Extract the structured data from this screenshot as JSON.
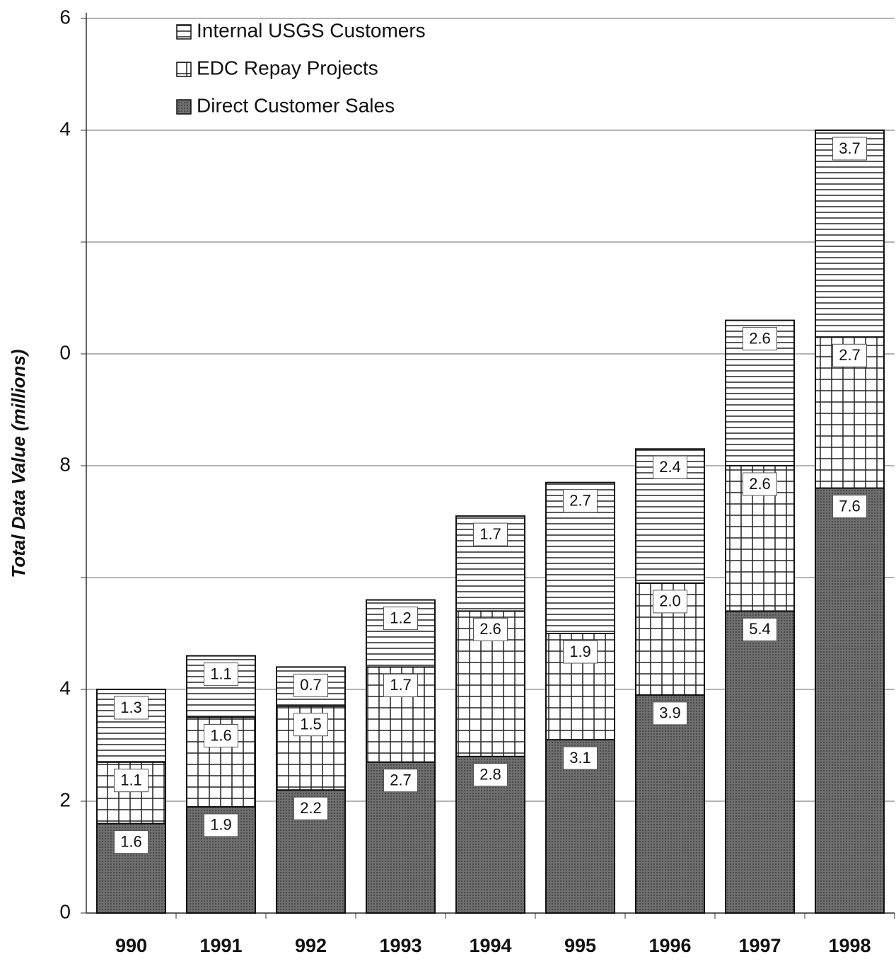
{
  "chart_data": {
    "type": "stacked-bar",
    "y_label": "Total Data Value (millions)",
    "categories": [
      "990",
      "1991",
      "992",
      "1993",
      "1994",
      "995",
      "1996",
      "1997",
      "1998"
    ],
    "series": [
      {
        "name": "Direct Customer Sales",
        "color": "#6f6f6f",
        "pattern": "stipple",
        "values": [
          1.6,
          1.9,
          2.2,
          2.7,
          2.8,
          3.1,
          3.9,
          5.4,
          7.6
        ],
        "value_labels": [
          "1.6",
          "1.9",
          "2.2",
          "2.7",
          "2.8",
          "3.1",
          "3.9",
          "5.4",
          "7.6"
        ]
      },
      {
        "name": "EDC Repay Projects",
        "color": "#ffffff",
        "pattern": "grid",
        "values": [
          1.1,
          1.6,
          1.5,
          1.7,
          2.6,
          1.9,
          2,
          2.6,
          2.7
        ],
        "value_labels": [
          "1.1",
          "1.6",
          "1.5",
          "1.7",
          "2.6",
          "1.9",
          "2.0",
          "2.6",
          "2.7"
        ]
      },
      {
        "name": "Internal USGS Customers",
        "color": "#ffffff",
        "pattern": "horizontal",
        "values": [
          1.3,
          1.1,
          0.7,
          1.2,
          1.7,
          2.7,
          2.4,
          2.6,
          3.7
        ],
        "value_labels": [
          "1.3",
          "1.1",
          "0.7",
          "1.2",
          "1.7",
          "2.7",
          "2.4",
          "2.6",
          "3.7"
        ]
      }
    ],
    "ylim": [
      0,
      16
    ],
    "yticks": [
      0,
      2,
      4,
      {
        "value": 6,
        "label": null
      },
      {
        "value": 8,
        "label": "8"
      },
      {
        "value": 10,
        "label": "0"
      },
      {
        "value": 12,
        "label": null
      },
      {
        "value": 14,
        "label": "4"
      },
      {
        "value": 16,
        "label": "6"
      }
    ],
    "grid": true,
    "legend": "top-left"
  }
}
